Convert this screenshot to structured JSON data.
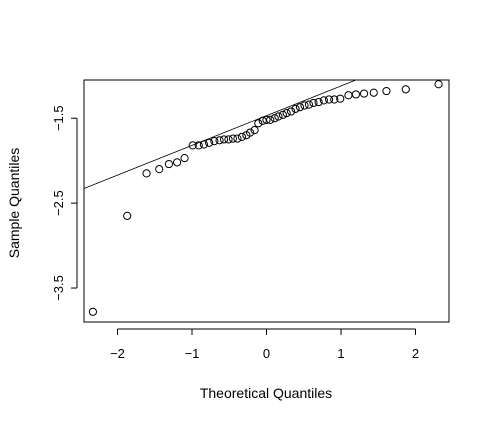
{
  "chart_data": {
    "type": "scatter",
    "title": "",
    "xlabel": "Theoretical Quantiles",
    "ylabel": "Sample Quantiles",
    "xlim": [
      -2.45,
      2.45
    ],
    "ylim": [
      -3.9,
      -1.05
    ],
    "x_ticks": [
      -2,
      -1,
      0,
      1,
      2
    ],
    "x_tick_labels": [
      "−2",
      "−1",
      "0",
      "1",
      "2"
    ],
    "y_ticks": [
      -3.5,
      -2.5,
      -1.5
    ],
    "y_tick_labels": [
      "−3.5",
      "−2.5",
      "−1.5"
    ],
    "grid": false,
    "reference_line": {
      "intercept": -1.47,
      "slope": 0.35
    },
    "series": [
      {
        "x": [
          -2.33,
          -1.87,
          -1.61,
          -1.44,
          -1.31,
          -1.2,
          -1.1,
          -0.99,
          -0.91,
          -0.84,
          -0.77,
          -0.7,
          -0.63,
          -0.57,
          -0.51,
          -0.45,
          -0.39,
          -0.33,
          -0.27,
          -0.22,
          -0.16,
          -0.11,
          -0.05,
          0.0,
          0.05,
          0.11,
          0.16,
          0.22,
          0.27,
          0.33,
          0.39,
          0.45,
          0.51,
          0.57,
          0.63,
          0.7,
          0.77,
          0.84,
          0.91,
          0.99,
          1.1,
          1.2,
          1.31,
          1.44,
          1.61,
          1.87,
          2.31
        ],
        "y": [
          -3.78,
          -2.65,
          -2.15,
          -2.1,
          -2.04,
          -2.02,
          -1.97,
          -1.82,
          -1.82,
          -1.81,
          -1.79,
          -1.77,
          -1.76,
          -1.75,
          -1.75,
          -1.74,
          -1.74,
          -1.72,
          -1.7,
          -1.67,
          -1.64,
          -1.56,
          -1.53,
          -1.52,
          -1.52,
          -1.5,
          -1.48,
          -1.46,
          -1.44,
          -1.42,
          -1.39,
          -1.37,
          -1.35,
          -1.34,
          -1.32,
          -1.31,
          -1.29,
          -1.28,
          -1.28,
          -1.27,
          -1.23,
          -1.22,
          -1.21,
          -1.2,
          -1.18,
          -1.16,
          -1.1
        ]
      }
    ]
  }
}
